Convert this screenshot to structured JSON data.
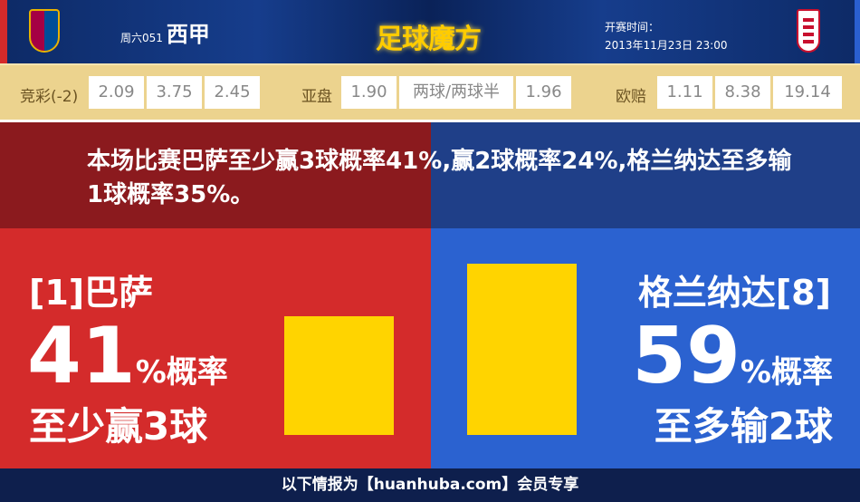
{
  "header": {
    "match_code": "周六051",
    "league": "西甲",
    "logo_text": "足球魔方",
    "kickoff_label": "开赛时间：",
    "kickoff_time": "2013年11月23日 23:00",
    "home_crest_icon": "fc-barcelona-crest",
    "away_crest_icon": "granada-crest"
  },
  "odds": {
    "jingcai": {
      "label": "竞彩(-2)",
      "values": [
        "2.09",
        "3.75",
        "2.45"
      ]
    },
    "asian": {
      "label": "亚盘",
      "values": [
        "1.90",
        "两球/两球半",
        "1.96"
      ]
    },
    "euro": {
      "label": "欧赔",
      "values": [
        "1.11",
        "8.38",
        "19.14"
      ]
    }
  },
  "summary": "本场比赛巴萨至少赢3球概率41%,赢2球概率24%,格兰纳达至多输1球概率35%。",
  "home": {
    "team": "[1]巴萨",
    "percent": "41",
    "percent_suffix": "%概率",
    "outcome": "至少赢3球",
    "bar_value": 41
  },
  "away": {
    "team": "格兰纳达[8]",
    "percent": "59",
    "percent_suffix": "%概率",
    "outcome": "至多输2球",
    "bar_value": 59
  },
  "colors": {
    "home": "#d42b2b",
    "away": "#2b62d0",
    "bar": "#ffd400"
  },
  "footer": "以下情报为【huanhuba.com】会员专享"
}
